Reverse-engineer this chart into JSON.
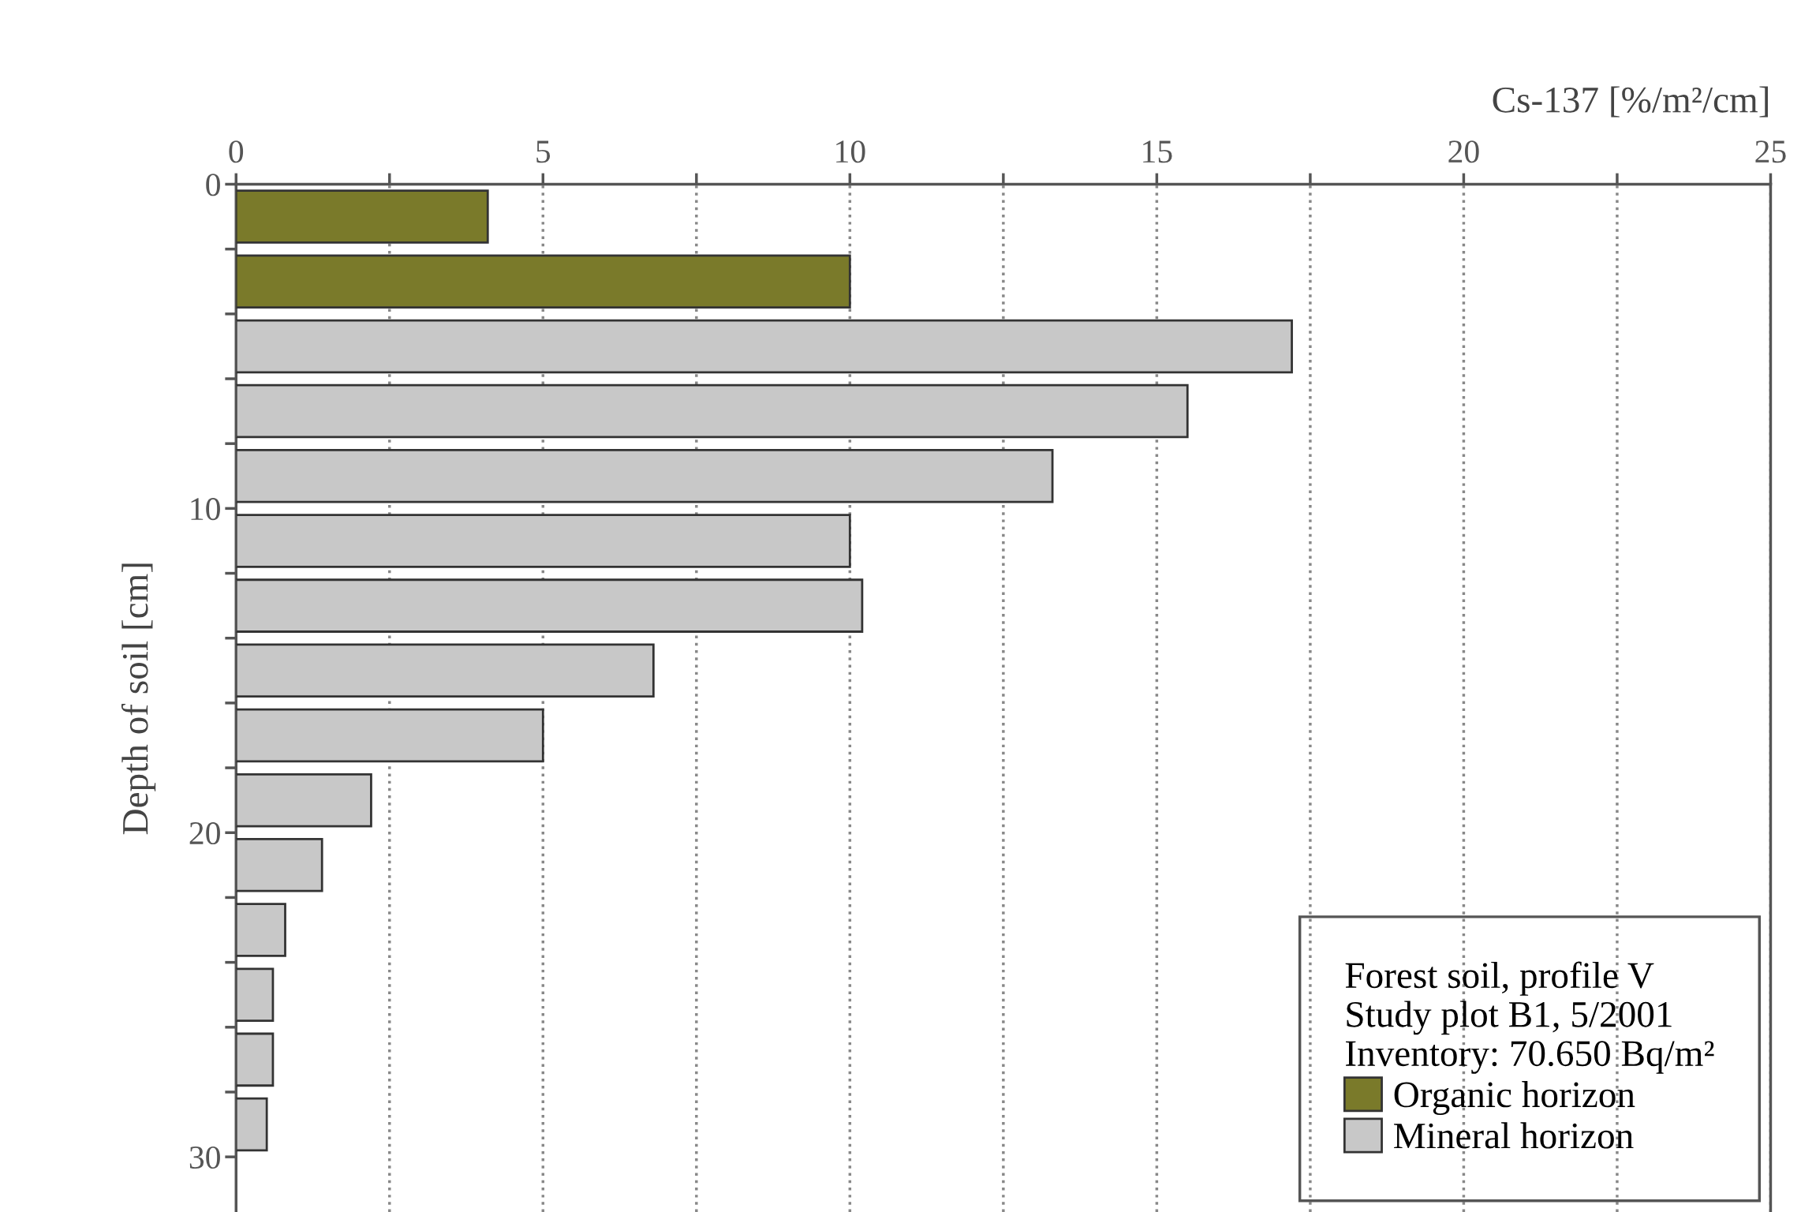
{
  "chart_data": {
    "type": "bar",
    "orientation": "horizontal",
    "xlabel": "Cs-137 [%/m²/cm]",
    "ylabel": "Depth of soil [cm]",
    "legend_title": "Forest soil, profile V\nStudy plot B1, 5/2001\nInventory: 70.650 Bq/m²",
    "series": [
      {
        "name": "Organic horizon",
        "color": "#7a7a2a",
        "x": [
          1,
          3
        ],
        "values": [
          4.1,
          10.0
        ]
      },
      {
        "name": "Mineral horizon",
        "color": "#c8c8c8",
        "x": [
          5,
          7,
          9,
          11,
          13,
          15,
          17,
          19,
          21,
          23,
          25,
          27,
          29
        ],
        "values": [
          17.2,
          15.5,
          13.3,
          10.0,
          10.2,
          6.8,
          5.0,
          2.2,
          1.4,
          0.8,
          0.6,
          0.6,
          0.5
        ]
      }
    ],
    "xlim": [
      0,
      25
    ],
    "xticks": [
      0,
      {
        "value": 2.5,
        "label": null
      },
      5,
      {
        "value": 7.5,
        "label": null
      },
      10,
      {
        "value": 12.5,
        "label": null
      },
      15,
      {
        "value": 17.5,
        "label": null
      },
      20,
      {
        "value": 22.5,
        "label": null
      },
      25
    ],
    "ylim": [
      31.7,
      0
    ],
    "yticks": [
      0,
      {
        "value": 2,
        "label": null
      },
      {
        "value": 4,
        "label": null
      },
      {
        "value": 6,
        "label": null
      },
      {
        "value": 8,
        "label": null
      },
      10,
      {
        "value": 12,
        "label": null
      },
      {
        "value": 14,
        "label": null
      },
      {
        "value": 16,
        "label": null
      },
      {
        "value": 18,
        "label": null
      },
      20,
      {
        "value": 22,
        "label": null
      },
      {
        "value": 24,
        "label": null
      },
      {
        "value": 26,
        "label": null
      },
      {
        "value": 28,
        "label": null
      },
      30
    ],
    "grid": "x",
    "legend": "bottom right"
  }
}
